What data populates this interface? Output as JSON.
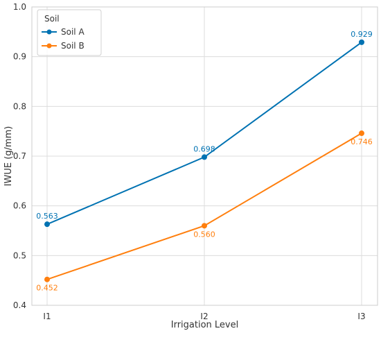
{
  "chart_data": {
    "type": "line",
    "title": "",
    "xlabel": "Irrigation Level",
    "ylabel": "IWUE (g/mm)",
    "categories": [
      "I1",
      "I2",
      "I3"
    ],
    "ylim": [
      0.4,
      1.0
    ],
    "yticks": [
      "0.4",
      "0.5",
      "0.6",
      "0.7",
      "0.8",
      "0.9",
      "1.0"
    ],
    "grid": true,
    "legend": {
      "title": "Soil",
      "placement": "top-left"
    },
    "series": [
      {
        "name": "Soil A",
        "values": [
          0.563,
          0.698,
          0.929
        ],
        "labels": [
          "0.563",
          "0.698",
          "0.929"
        ],
        "color": "#0072B2",
        "label_position": "above"
      },
      {
        "name": "Soil B",
        "values": [
          0.452,
          0.56,
          0.746
        ],
        "labels": [
          "0.452",
          "0.560",
          "0.746"
        ],
        "color": "#FF7F0E",
        "label_position": "below"
      }
    ]
  }
}
